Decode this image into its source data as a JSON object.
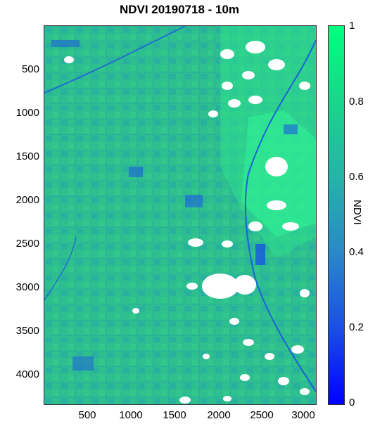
{
  "figure": {
    "title": "NDVI 20190718 - 10m",
    "y_ticks": [
      "500",
      "1000",
      "1500",
      "2000",
      "2500",
      "3000",
      "3500",
      "4000"
    ],
    "x_ticks": [
      "500",
      "1000",
      "1500",
      "2000",
      "2500",
      "3000"
    ],
    "colorbar": {
      "label": "NDVI",
      "ticks": [
        "0",
        "0.2",
        "0.4",
        "0.6",
        "0.8",
        "1"
      ],
      "range": [
        0,
        1
      ],
      "colors": [
        "#0000ff",
        "#2a88c8",
        "#26b3a8",
        "#00ff7f"
      ]
    },
    "map": {
      "dominant_color": "#2fbf8c",
      "cloud_color": "#ffffff",
      "description_icon": "ndvi-raster-image"
    }
  }
}
